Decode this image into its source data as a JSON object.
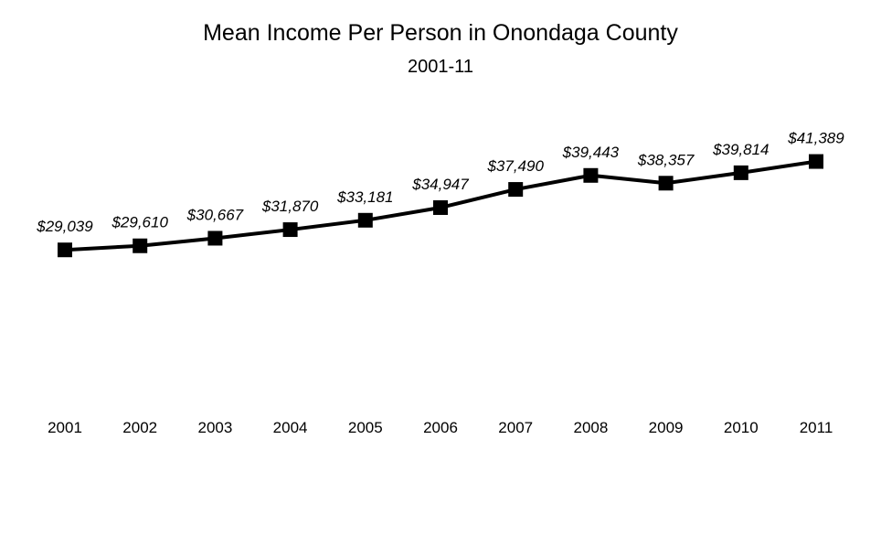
{
  "chart_data": {
    "type": "line",
    "title": "Mean Income Per Person in Onondaga County",
    "subtitle": "2001-11",
    "categories": [
      "2001",
      "2002",
      "2003",
      "2004",
      "2005",
      "2006",
      "2007",
      "2008",
      "2009",
      "2010",
      "2011"
    ],
    "series": [
      {
        "values": [
          29039,
          29610,
          30667,
          31870,
          33181,
          34947,
          37490,
          39443,
          38357,
          39814,
          41389
        ],
        "labels": [
          "$29,039",
          "$29,610",
          "$30,667",
          "$31,870",
          "$33,181",
          "$34,947",
          "$37,490",
          "$39,443",
          "$38,357",
          "$39,814",
          "$41,389"
        ],
        "color": "#000000",
        "marker": "square"
      }
    ],
    "ylim": [
      0,
      50000
    ],
    "grid": false,
    "y_axis_visible": false,
    "legend": "none"
  }
}
